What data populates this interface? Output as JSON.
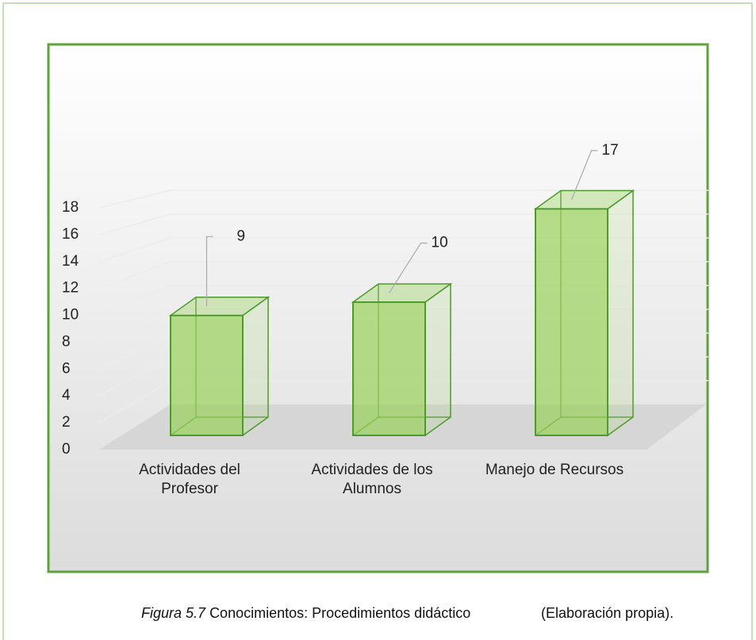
{
  "chart_data": {
    "type": "bar3d",
    "categories": [
      "Actividades del Profesor",
      "Actividades de los Alumnos",
      "Manejo de Recursos"
    ],
    "values": [
      9,
      10,
      17
    ],
    "color": "#92d050",
    "ylim": [
      0,
      18
    ],
    "yticks": [
      0,
      2,
      4,
      6,
      8,
      10,
      12,
      14,
      16,
      18
    ],
    "grid": true
  },
  "caption": {
    "figure": "Figura 5.7",
    "text": "Conocimientos: Procedimientos didáctico",
    "source": "(Elaboración propia)."
  }
}
